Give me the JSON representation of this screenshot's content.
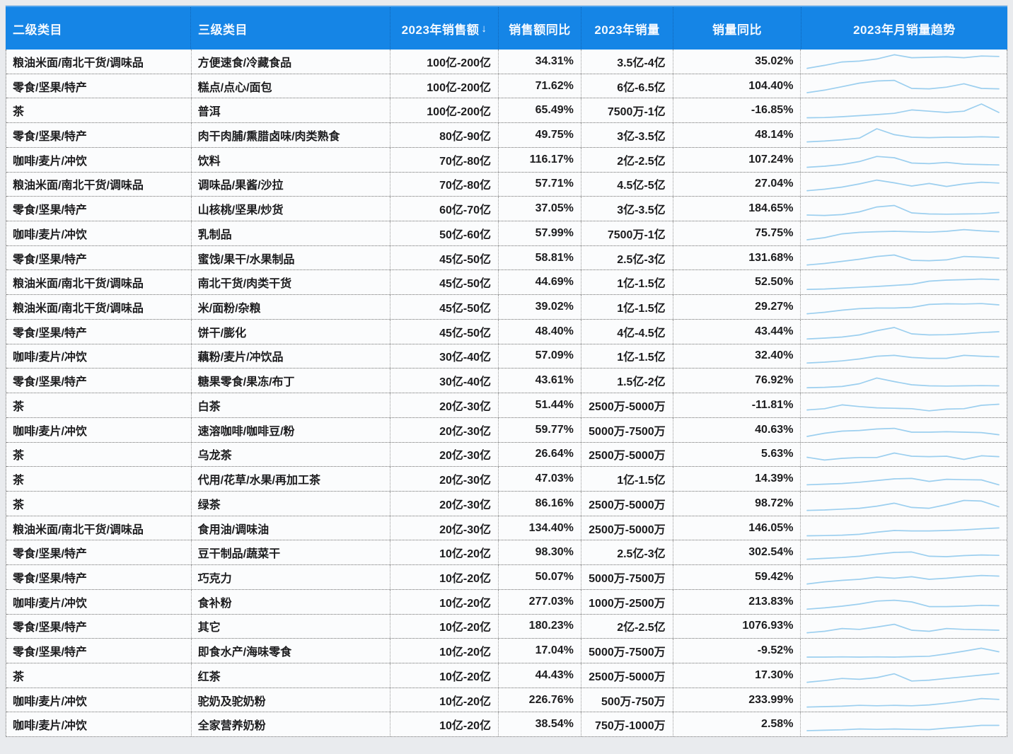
{
  "colors": {
    "header_bg": "#1585e6",
    "header_text": "#f4f9ff",
    "body_text": "#1c1c1e",
    "sparkline": "#9ccfef",
    "page_bg": "#e9ebee"
  },
  "chart_data": {
    "type": "table",
    "title": "",
    "sparkline_color": "#9ccfef",
    "columns": [
      {
        "key": "cat2",
        "label": "二级类目"
      },
      {
        "key": "cat3",
        "label": "三级类目"
      },
      {
        "key": "sales",
        "label": "2023年销售额",
        "sort_icon": "↓"
      },
      {
        "key": "sales_yoy",
        "label": "销售额同比"
      },
      {
        "key": "volume",
        "label": "2023年销量"
      },
      {
        "key": "volume_yoy",
        "label": "销量同比"
      },
      {
        "key": "trend",
        "label": "2023年月销量趋势"
      }
    ],
    "rows": [
      {
        "cat2": "粮油米面/南北干货/调味品",
        "cat3": "方便速食/冷藏食品",
        "sales": "100亿-200亿",
        "sales_yoy": "34.31%",
        "volume": "3.5亿-4亿",
        "volume_yoy": "35.02%",
        "trend": [
          8,
          22,
          38,
          42,
          52,
          72,
          58,
          60,
          62,
          58,
          66,
          64
        ]
      },
      {
        "cat2": "零食/坚果/特产",
        "cat3": "糕点/点心/面包",
        "sales": "100亿-200亿",
        "sales_yoy": "71.62%",
        "volume": "6亿-6.5亿",
        "volume_yoy": "104.40%",
        "trend": [
          10,
          22,
          38,
          55,
          65,
          68,
          30,
          28,
          36,
          52,
          30,
          28
        ]
      },
      {
        "cat2": "茶",
        "cat3": "普洱",
        "sales": "100亿-200亿",
        "sales_yoy": "65.49%",
        "volume": "7500万-1亿",
        "volume_yoy": "-16.85%",
        "trend": [
          5,
          6,
          10,
          15,
          20,
          26,
          42,
          36,
          30,
          36,
          70,
          30
        ]
      },
      {
        "cat2": "零食/坚果/特产",
        "cat3": "肉干肉脯/熏腊卤味/肉类熟食",
        "sales": "80亿-90亿",
        "sales_yoy": "49.75%",
        "volume": "3亿-3.5亿",
        "volume_yoy": "48.14%",
        "trend": [
          8,
          12,
          18,
          26,
          70,
          42,
          30,
          28,
          30,
          30,
          32,
          30
        ]
      },
      {
        "cat2": "咖啡/麦片/冲饮",
        "cat3": "饮料",
        "sales": "70亿-80亿",
        "sales_yoy": "116.17%",
        "volume": "2亿-2.5亿",
        "volume_yoy": "107.24%",
        "trend": [
          5,
          10,
          18,
          32,
          56,
          50,
          25,
          22,
          28,
          20,
          18,
          16
        ]
      },
      {
        "cat2": "粮油米面/南北干货/调味品",
        "cat3": "调味品/果酱/沙拉",
        "sales": "70亿-80亿",
        "sales_yoy": "57.71%",
        "volume": "4.5亿-5亿",
        "volume_yoy": "27.04%",
        "trend": [
          8,
          15,
          25,
          40,
          58,
          45,
          30,
          42,
          28,
          40,
          48,
          44
        ]
      },
      {
        "cat2": "零食/坚果/特产",
        "cat3": "山核桃/坚果/炒货",
        "sales": "60亿-70亿",
        "sales_yoy": "37.05%",
        "volume": "3亿-3.5亿",
        "volume_yoy": "184.65%",
        "trend": [
          10,
          8,
          12,
          25,
          48,
          55,
          20,
          15,
          14,
          15,
          16,
          22
        ]
      },
      {
        "cat2": "咖啡/麦片/冲饮",
        "cat3": "乳制品",
        "sales": "50亿-60亿",
        "sales_yoy": "57.99%",
        "volume": "7500万-1亿",
        "volume_yoy": "75.75%",
        "trend": [
          10,
          20,
          38,
          45,
          48,
          50,
          48,
          46,
          50,
          58,
          52,
          48
        ]
      },
      {
        "cat2": "零食/坚果/特产",
        "cat3": "蜜饯/果干/水果制品",
        "sales": "45亿-50亿",
        "sales_yoy": "58.81%",
        "volume": "2.5亿-3亿",
        "volume_yoy": "131.68%",
        "trend": [
          8,
          15,
          25,
          35,
          48,
          55,
          30,
          28,
          32,
          48,
          45,
          40
        ]
      },
      {
        "cat2": "粮油米面/南北干货/调味品",
        "cat3": "南北干货/肉类干货",
        "sales": "45亿-50亿",
        "sales_yoy": "44.69%",
        "volume": "1亿-1.5亿",
        "volume_yoy": "52.50%",
        "trend": [
          6,
          8,
          12,
          16,
          20,
          25,
          30,
          45,
          50,
          52,
          55,
          52
        ]
      },
      {
        "cat2": "粮油米面/南北干货/调味品",
        "cat3": "米/面粉/杂粮",
        "sales": "45亿-50亿",
        "sales_yoy": "39.02%",
        "volume": "1亿-1.5亿",
        "volume_yoy": "29.27%",
        "trend": [
          8,
          15,
          25,
          32,
          35,
          35,
          38,
          52,
          55,
          54,
          56,
          50
        ]
      },
      {
        "cat2": "零食/坚果/特产",
        "cat3": "饼干/膨化",
        "sales": "45亿-50亿",
        "sales_yoy": "48.40%",
        "volume": "4亿-4.5亿",
        "volume_yoy": "43.44%",
        "trend": [
          6,
          10,
          15,
          25,
          45,
          60,
          30,
          25,
          26,
          30,
          36,
          40
        ]
      },
      {
        "cat2": "咖啡/麦片/冲饮",
        "cat3": "藕粉/麦片/冲饮品",
        "sales": "30亿-40亿",
        "sales_yoy": "57.09%",
        "volume": "1亿-1.5亿",
        "volume_yoy": "32.40%",
        "trend": [
          6,
          10,
          16,
          25,
          38,
          42,
          32,
          28,
          28,
          42,
          38,
          35
        ]
      },
      {
        "cat2": "零食/坚果/特产",
        "cat3": "糖果零食/果冻/布丁",
        "sales": "30亿-40亿",
        "sales_yoy": "43.61%",
        "volume": "1.5亿-2亿",
        "volume_yoy": "76.92%",
        "trend": [
          6,
          8,
          12,
          25,
          52,
          35,
          20,
          15,
          14,
          15,
          16,
          15
        ]
      },
      {
        "cat2": "茶",
        "cat3": "白茶",
        "sales": "20亿-30亿",
        "sales_yoy": "51.44%",
        "volume": "2500万-5000万",
        "volume_yoy": "-11.81%",
        "trend": [
          18,
          24,
          42,
          34,
          28,
          26,
          24,
          14,
          22,
          24,
          40,
          45
        ]
      },
      {
        "cat2": "咖啡/麦片/冲饮",
        "cat3": "速溶咖啡/咖啡豆/粉",
        "sales": "20亿-30亿",
        "sales_yoy": "59.77%",
        "volume": "5000万-7500万",
        "volume_yoy": "40.63%",
        "trend": [
          10,
          25,
          35,
          38,
          45,
          48,
          30,
          30,
          32,
          30,
          28,
          18
        ]
      },
      {
        "cat2": "茶",
        "cat3": "乌龙茶",
        "sales": "20亿-30亿",
        "sales_yoy": "26.64%",
        "volume": "2500万-5000万",
        "volume_yoy": "5.63%",
        "trend": [
          25,
          12,
          20,
          24,
          24,
          45,
          30,
          28,
          30,
          15,
          32,
          28
        ]
      },
      {
        "cat2": "茶",
        "cat3": "代用/花草/水果/再加工茶",
        "sales": "20亿-30亿",
        "sales_yoy": "47.03%",
        "volume": "1亿-1.5亿",
        "volume_yoy": "14.39%",
        "trend": [
          12,
          15,
          18,
          24,
          32,
          40,
          42,
          28,
          38,
          36,
          35,
          12
        ]
      },
      {
        "cat2": "茶",
        "cat3": "绿茶",
        "sales": "20亿-30亿",
        "sales_yoy": "86.16%",
        "volume": "2500万-5000万",
        "volume_yoy": "98.72%",
        "trend": [
          8,
          10,
          14,
          18,
          28,
          42,
          22,
          18,
          35,
          55,
          52,
          25
        ]
      },
      {
        "cat2": "粮油米面/南北干货/调味品",
        "cat3": "食用油/调味油",
        "sales": "20亿-30亿",
        "sales_yoy": "134.40%",
        "volume": "2500万-5000万",
        "volume_yoy": "146.05%",
        "trend": [
          5,
          6,
          8,
          12,
          22,
          30,
          28,
          28,
          30,
          33,
          38,
          42
        ]
      },
      {
        "cat2": "零食/坚果/特产",
        "cat3": "豆干制品/蔬菜干",
        "sales": "10亿-20亿",
        "sales_yoy": "98.30%",
        "volume": "2.5亿-3亿",
        "volume_yoy": "302.54%",
        "trend": [
          8,
          12,
          16,
          22,
          32,
          40,
          42,
          22,
          20,
          25,
          28,
          26
        ]
      },
      {
        "cat2": "零食/坚果/特产",
        "cat3": "巧克力",
        "sales": "10亿-20亿",
        "sales_yoy": "50.07%",
        "volume": "5000万-7500万",
        "volume_yoy": "59.42%",
        "trend": [
          8,
          18,
          25,
          30,
          40,
          35,
          42,
          30,
          35,
          42,
          48,
          45
        ]
      },
      {
        "cat2": "咖啡/麦片/冲饮",
        "cat3": "食补粉",
        "sales": "10亿-20亿",
        "sales_yoy": "277.03%",
        "volume": "1000万-2500万",
        "volume_yoy": "213.83%",
        "trend": [
          6,
          12,
          20,
          30,
          44,
          48,
          40,
          18,
          18,
          20,
          24,
          22
        ]
      },
      {
        "cat2": "零食/坚果/特产",
        "cat3": "其它",
        "sales": "10亿-20亿",
        "sales_yoy": "180.23%",
        "volume": "2亿-2.5亿",
        "volume_yoy": "1076.93%",
        "trend": [
          8,
          15,
          28,
          24,
          35,
          48,
          20,
          15,
          28,
          24,
          22,
          20
        ]
      },
      {
        "cat2": "零食/坚果/特产",
        "cat3": "即食水产/海味零食",
        "sales": "10亿-20亿",
        "sales_yoy": "17.04%",
        "volume": "5000万-7500万",
        "volume_yoy": "-9.52%",
        "trend": [
          10,
          10,
          11,
          10,
          11,
          10,
          12,
          14,
          25,
          38,
          52,
          35
        ]
      },
      {
        "cat2": "茶",
        "cat3": "红茶",
        "sales": "10亿-20亿",
        "sales_yoy": "44.43%",
        "volume": "2500万-5000万",
        "volume_yoy": "17.30%",
        "trend": [
          8,
          16,
          26,
          22,
          30,
          48,
          14,
          18,
          26,
          34,
          42,
          50
        ]
      },
      {
        "cat2": "咖啡/麦片/冲饮",
        "cat3": "驼奶及驼奶粉",
        "sales": "10亿-20亿",
        "sales_yoy": "226.76%",
        "volume": "500万-750万",
        "volume_yoy": "233.99%",
        "trend": [
          8,
          10,
          12,
          16,
          14,
          16,
          14,
          18,
          26,
          36,
          48,
          44
        ]
      },
      {
        "cat2": "咖啡/麦片/冲饮",
        "cat3": "全家营养奶粉",
        "sales": "10亿-20亿",
        "sales_yoy": "38.54%",
        "volume": "750万-1000万",
        "volume_yoy": "2.58%",
        "trend": [
          10,
          12,
          14,
          18,
          16,
          18,
          16,
          15,
          22,
          28,
          35,
          35
        ]
      }
    ]
  }
}
